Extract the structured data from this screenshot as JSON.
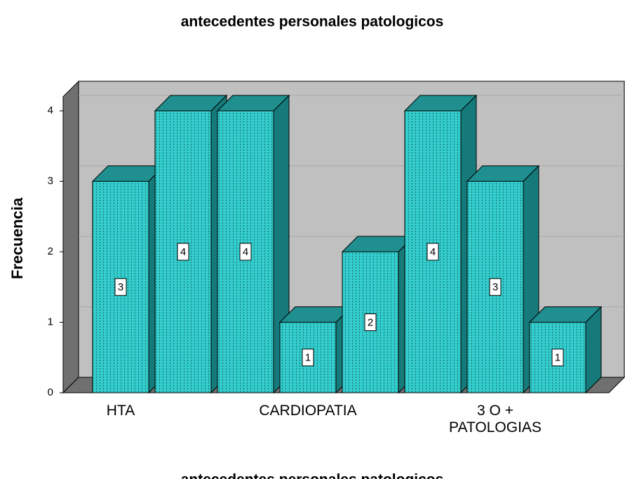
{
  "chart_data": {
    "type": "bar3d",
    "title": "antecedentes personales patologicos",
    "x_label": "antecedentes personales patologicos",
    "y_label": "Frecuencia",
    "categories": [
      "HTA",
      null,
      null,
      "CARDIOPATIA",
      null,
      null,
      "3 O +\nPATOLOGIAS",
      null
    ],
    "values": [
      3,
      4,
      4,
      1,
      2,
      4,
      3,
      1
    ],
    "color": "#33cccc",
    "ylim": [
      0,
      4.2
    ],
    "yticks": [
      0,
      1,
      2,
      3,
      4
    ],
    "grid": true
  }
}
